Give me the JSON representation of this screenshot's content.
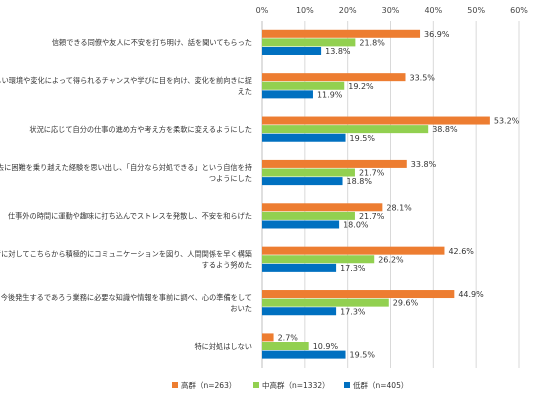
{
  "chart_data": {
    "type": "bar",
    "orientation": "horizontal",
    "xlim": [
      0,
      60
    ],
    "x_ticks": [
      "0%",
      "10%",
      "20%",
      "30%",
      "40%",
      "50%",
      "60%"
    ],
    "x_tick_values": [
      0,
      10,
      20,
      30,
      40,
      50,
      60
    ],
    "value_suffix": "%",
    "grid": true,
    "legend_position": "bottom",
    "categories": [
      [
        "信頼できる同僚や友人に不安を打ち明け、話を聞いてもらった"
      ],
      [
        "新しい環境や変化によって得られるチャンスや学びに目を向け、変化を前向きに捉",
        "えた"
      ],
      [
        "状況に応じて自分の仕事の進め方や考え方を柔軟に変えるようにした"
      ],
      [
        "過去に困難を乗り越えた経験を思い出し、「自分なら対処できる」という自信を持",
        "つようにした"
      ],
      [
        "仕事外の時間に運動や趣味に打ち込んでストレスを発散し、不安を和らげた"
      ],
      [
        "関係者に対してこちらから積極的にコミュニケーションを図り、人間関係を早く構築",
        "するよう努めた"
      ],
      [
        "今後発生するであろう業務に必要な知識や情報を事前に調べ、心の準備をして",
        "おいた"
      ],
      [
        "特に対処はしない"
      ]
    ],
    "series": [
      {
        "name": "高群（n=263）",
        "color": "#ED7D31",
        "values": [
          36.9,
          33.5,
          53.2,
          33.8,
          28.1,
          42.6,
          44.9,
          2.7
        ]
      },
      {
        "name": "中高群（n=1332）",
        "color": "#92D050",
        "values": [
          21.8,
          19.2,
          38.8,
          21.7,
          21.7,
          26.2,
          29.6,
          10.9
        ]
      },
      {
        "name": "低群（n=405）",
        "color": "#0070C0",
        "values": [
          13.8,
          11.9,
          19.5,
          18.8,
          18.0,
          17.3,
          17.3,
          19.5
        ]
      }
    ]
  }
}
